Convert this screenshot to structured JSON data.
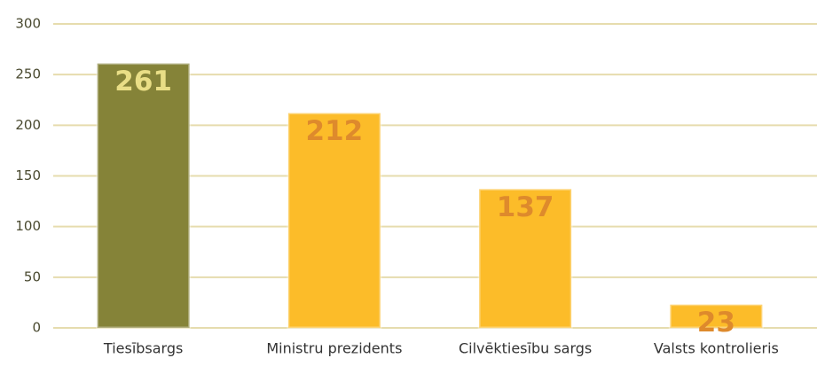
{
  "chart_data": {
    "type": "bar",
    "categories": [
      "Tiesībsargs",
      "Ministru prezidents",
      "Cilvēktiesību sargs",
      "Valsts kontrolieris"
    ],
    "values": [
      261,
      212,
      137,
      23
    ],
    "colors": [
      "#858338",
      "#fcbc29",
      "#fcbc29",
      "#fcbc29"
    ],
    "label_colors": [
      "#e9de86",
      "#de8a2c",
      "#de8a2c",
      "#de8a2c"
    ],
    "ylim": [
      0,
      300
    ],
    "yticks": [
      0,
      50,
      100,
      150,
      200,
      250,
      300
    ],
    "grid": true
  }
}
